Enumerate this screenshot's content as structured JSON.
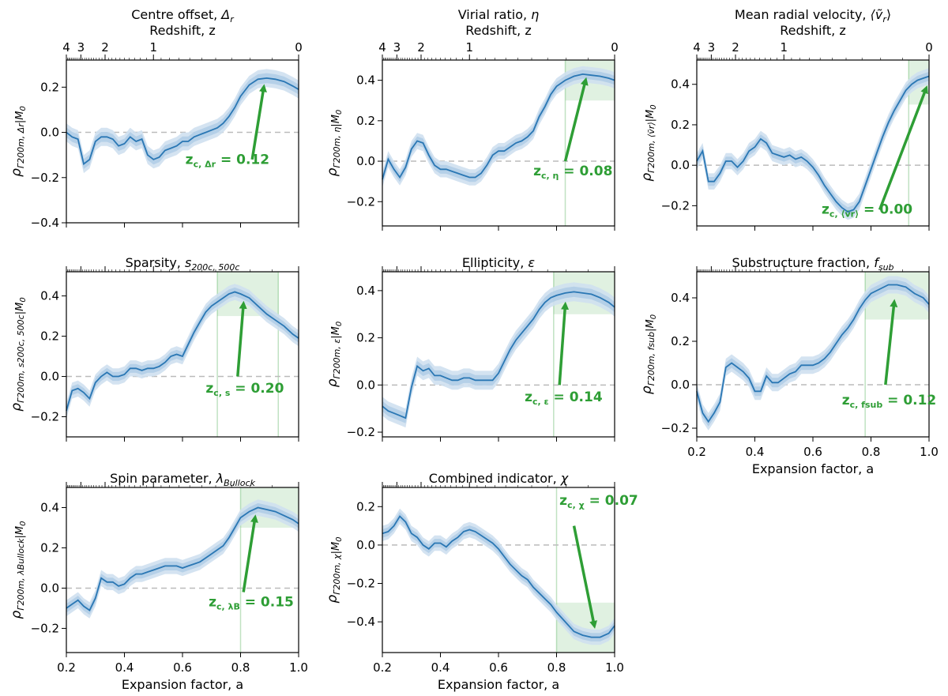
{
  "figure": {
    "colors": {
      "line": "#2a77b4",
      "band_inner": "#a8c8e4",
      "band_outer": "#cfe0f0",
      "green": "#2e9e35",
      "green_region": "#2e9e35",
      "zero_line": "#bbbbbb"
    },
    "shared": {
      "xlabel": "Expansion factor, a",
      "top_axis_label": "Redshift, z",
      "x_ticks": [
        "0.2",
        "0.4",
        "0.6",
        "0.8",
        "1.0"
      ],
      "x_tick_values": [
        0.2,
        0.4,
        0.6,
        0.8,
        1.0
      ],
      "z_ticks": [
        "4",
        "3",
        "2",
        "1",
        "0"
      ],
      "z_tick_values": [
        4,
        3,
        2,
        1,
        0
      ]
    }
  },
  "chart_data": [
    {
      "type": "line",
      "title": "Centre offset, Δ_r",
      "title_main": "Centre offset, ",
      "title_sym": "Δ",
      "title_sub": "r",
      "ylabel_sub": "Δr",
      "ylim": [
        -0.4,
        0.32
      ],
      "yticks": [
        "−0.4",
        "−0.2",
        "0.0",
        "0.2"
      ],
      "ytick_values": [
        -0.4,
        -0.2,
        0.0,
        0.2
      ],
      "annotation": "z_c,Δr = 0.12",
      "annotation_main": "z",
      "annotation_sub": "c, Δr",
      "annotation_value": " = 0.12",
      "has_top_axis": true,
      "x": [
        0.2,
        0.22,
        0.24,
        0.26,
        0.28,
        0.3,
        0.32,
        0.34,
        0.36,
        0.38,
        0.4,
        0.42,
        0.44,
        0.46,
        0.48,
        0.5,
        0.52,
        0.54,
        0.56,
        0.58,
        0.6,
        0.62,
        0.64,
        0.66,
        0.68,
        0.7,
        0.72,
        0.74,
        0.76,
        0.78,
        0.8,
        0.83,
        0.86,
        0.89,
        0.92,
        0.95,
        0.98,
        1.0
      ],
      "y": [
        0.0,
        -0.02,
        -0.03,
        -0.14,
        -0.12,
        -0.04,
        -0.02,
        -0.02,
        -0.03,
        -0.06,
        -0.05,
        -0.02,
        -0.04,
        -0.03,
        -0.1,
        -0.12,
        -0.11,
        -0.08,
        -0.07,
        -0.06,
        -0.04,
        -0.04,
        -0.02,
        -0.01,
        0.0,
        0.01,
        0.02,
        0.04,
        0.07,
        0.11,
        0.16,
        0.21,
        0.235,
        0.24,
        0.235,
        0.225,
        0.205,
        0.19
      ],
      "band": 0.04,
      "green_region": null,
      "arrow_from": [
        0.84,
        -0.12
      ],
      "arrow_to": [
        0.88,
        0.2
      ],
      "annot_at": [
        0.61,
        -0.14
      ]
    },
    {
      "type": "line",
      "title": "Virial ratio, η",
      "title_main": "Virial ratio, ",
      "title_sym": "η",
      "title_sub": "",
      "ylabel_sub": "η",
      "ylim": [
        -0.32,
        0.5
      ],
      "yticks": [
        "−0.2",
        "0.0",
        "0.2",
        "0.4"
      ],
      "ytick_values": [
        -0.2,
        0.0,
        0.2,
        0.4
      ],
      "annotation": "z_c,η = 0.08",
      "annotation_main": "z",
      "annotation_sub": "c, η",
      "annotation_value": " = 0.08",
      "has_top_axis": true,
      "x": [
        0.2,
        0.22,
        0.24,
        0.26,
        0.28,
        0.3,
        0.32,
        0.34,
        0.36,
        0.38,
        0.4,
        0.42,
        0.44,
        0.46,
        0.48,
        0.5,
        0.52,
        0.54,
        0.56,
        0.58,
        0.6,
        0.62,
        0.64,
        0.66,
        0.68,
        0.7,
        0.72,
        0.74,
        0.76,
        0.78,
        0.8,
        0.83,
        0.86,
        0.89,
        0.92,
        0.95,
        0.98,
        1.0
      ],
      "y": [
        -0.09,
        0.01,
        -0.04,
        -0.08,
        -0.03,
        0.06,
        0.1,
        0.09,
        0.03,
        -0.02,
        -0.04,
        -0.04,
        -0.05,
        -0.06,
        -0.07,
        -0.08,
        -0.08,
        -0.06,
        -0.02,
        0.03,
        0.05,
        0.05,
        0.07,
        0.09,
        0.1,
        0.12,
        0.15,
        0.22,
        0.27,
        0.33,
        0.37,
        0.4,
        0.42,
        0.43,
        0.425,
        0.42,
        0.41,
        0.4
      ],
      "band": 0.04,
      "green_region": [
        0.83,
        1.0,
        0.3,
        0.5
      ],
      "arrow_from": [
        0.83,
        0.0
      ],
      "arrow_to": [
        0.9,
        0.4
      ],
      "annot_at": [
        0.72,
        -0.07
      ]
    },
    {
      "type": "line",
      "title": "Mean radial velocity, ⟨ṽ_r⟩",
      "title_main": "Mean radial velocity, ",
      "title_sym": "⟨ṽ",
      "title_sub": "r",
      "title_close": "⟩",
      "ylabel_sub": "⟨ṽr⟩",
      "ylim": [
        -0.3,
        0.52
      ],
      "yticks": [
        "−0.2",
        "0.0",
        "0.2",
        "0.4"
      ],
      "ytick_values": [
        -0.2,
        0.0,
        0.2,
        0.4
      ],
      "annotation": "z_c,⟨ṽr⟩ = 0.00",
      "annotation_main": "z",
      "annotation_sub": "c, ⟨ṽr⟩",
      "annotation_value": " = 0.00",
      "has_top_axis": true,
      "x": [
        0.2,
        0.22,
        0.24,
        0.26,
        0.28,
        0.3,
        0.32,
        0.34,
        0.36,
        0.38,
        0.4,
        0.42,
        0.44,
        0.46,
        0.48,
        0.5,
        0.52,
        0.54,
        0.56,
        0.58,
        0.6,
        0.62,
        0.64,
        0.66,
        0.68,
        0.7,
        0.72,
        0.74,
        0.76,
        0.78,
        0.8,
        0.82,
        0.84,
        0.86,
        0.88,
        0.9,
        0.92,
        0.94,
        0.96,
        0.98,
        1.0
      ],
      "y": [
        0.02,
        0.07,
        -0.08,
        -0.08,
        -0.04,
        0.02,
        0.02,
        -0.01,
        0.02,
        0.07,
        0.09,
        0.13,
        0.11,
        0.06,
        0.05,
        0.04,
        0.05,
        0.03,
        0.04,
        0.02,
        -0.01,
        -0.05,
        -0.1,
        -0.14,
        -0.18,
        -0.21,
        -0.23,
        -0.22,
        -0.18,
        -0.1,
        -0.02,
        0.06,
        0.14,
        0.21,
        0.27,
        0.32,
        0.37,
        0.4,
        0.42,
        0.43,
        0.44
      ],
      "band": 0.04,
      "green_region": [
        0.93,
        1.0,
        0.3,
        0.52
      ],
      "arrow_from": [
        0.83,
        -0.22
      ],
      "arrow_to": [
        0.99,
        0.38
      ],
      "annot_at": [
        0.63,
        -0.24
      ]
    },
    {
      "type": "line",
      "title": "Sparsity, s_200c,500c",
      "title_main": "Sparsity, ",
      "title_sym": "s",
      "title_sub": "200c, 500c",
      "ylabel_sub": "s200c, 500c",
      "ylim": [
        -0.3,
        0.52
      ],
      "yticks": [
        "−0.2",
        "0.0",
        "0.2",
        "0.4"
      ],
      "ytick_values": [
        -0.2,
        0.0,
        0.2,
        0.4
      ],
      "annotation": "z_c,s = 0.20",
      "annotation_main": "z",
      "annotation_sub": "c, s",
      "annotation_value": " = 0.20",
      "has_top_axis": false,
      "x": [
        0.2,
        0.22,
        0.24,
        0.26,
        0.28,
        0.3,
        0.32,
        0.34,
        0.36,
        0.38,
        0.4,
        0.42,
        0.44,
        0.46,
        0.48,
        0.5,
        0.52,
        0.54,
        0.56,
        0.58,
        0.6,
        0.62,
        0.64,
        0.66,
        0.68,
        0.7,
        0.72,
        0.74,
        0.76,
        0.78,
        0.8,
        0.83,
        0.86,
        0.89,
        0.92,
        0.95,
        0.98,
        1.0
      ],
      "y": [
        -0.17,
        -0.07,
        -0.06,
        -0.08,
        -0.11,
        -0.03,
        0.0,
        0.02,
        0.0,
        0.0,
        0.01,
        0.04,
        0.04,
        0.03,
        0.04,
        0.04,
        0.05,
        0.07,
        0.1,
        0.11,
        0.1,
        0.16,
        0.22,
        0.27,
        0.32,
        0.35,
        0.37,
        0.39,
        0.41,
        0.42,
        0.41,
        0.39,
        0.35,
        0.31,
        0.28,
        0.25,
        0.21,
        0.19
      ],
      "band": 0.04,
      "green_region": [
        0.72,
        0.93,
        0.3,
        0.52
      ],
      "arrow_from": [
        0.79,
        0.0
      ],
      "arrow_to": [
        0.81,
        0.36
      ],
      "annot_at": [
        0.68,
        -0.08
      ]
    },
    {
      "type": "line",
      "title": "Ellipticity, ε",
      "title_main": "Ellipticity, ",
      "title_sym": "ε",
      "title_sub": "",
      "ylabel_sub": "ε",
      "ylim": [
        -0.22,
        0.48
      ],
      "yticks": [
        "−0.2",
        "0.0",
        "0.2",
        "0.4"
      ],
      "ytick_values": [
        -0.2,
        0.0,
        0.2,
        0.4
      ],
      "annotation": "z_c,ε = 0.14",
      "annotation_main": "z",
      "annotation_sub": "c, ε",
      "annotation_value": " = 0.14",
      "has_top_axis": false,
      "x": [
        0.2,
        0.22,
        0.24,
        0.26,
        0.28,
        0.3,
        0.32,
        0.34,
        0.36,
        0.38,
        0.4,
        0.42,
        0.44,
        0.46,
        0.48,
        0.5,
        0.52,
        0.54,
        0.56,
        0.58,
        0.6,
        0.62,
        0.64,
        0.66,
        0.68,
        0.7,
        0.72,
        0.74,
        0.76,
        0.78,
        0.8,
        0.83,
        0.86,
        0.89,
        0.92,
        0.95,
        0.98,
        1.0
      ],
      "y": [
        -0.09,
        -0.11,
        -0.12,
        -0.13,
        -0.14,
        -0.01,
        0.08,
        0.06,
        0.07,
        0.04,
        0.04,
        0.03,
        0.02,
        0.02,
        0.03,
        0.03,
        0.02,
        0.02,
        0.02,
        0.02,
        0.05,
        0.1,
        0.15,
        0.19,
        0.22,
        0.25,
        0.28,
        0.32,
        0.35,
        0.37,
        0.38,
        0.39,
        0.395,
        0.39,
        0.385,
        0.37,
        0.35,
        0.33
      ],
      "band": 0.04,
      "green_region": [
        0.79,
        1.0,
        0.3,
        0.48
      ],
      "arrow_from": [
        0.81,
        0.0
      ],
      "arrow_to": [
        0.83,
        0.34
      ],
      "annot_at": [
        0.69,
        -0.07
      ]
    },
    {
      "type": "line",
      "title": "Substructure fraction, f_sub",
      "title_main": "Substructure fraction, ",
      "title_sym": "f",
      "title_sub": "sub",
      "ylabel_sub": "fsub",
      "ylim": [
        -0.24,
        0.52
      ],
      "yticks": [
        "−0.2",
        "0.0",
        "0.2",
        "0.4"
      ],
      "ytick_values": [
        -0.2,
        0.0,
        0.2,
        0.4
      ],
      "annotation": "z_c,fsub = 0.12",
      "annotation_main": "z",
      "annotation_sub": "c, fsub",
      "annotation_value": " = 0.12",
      "has_top_axis": false,
      "x": [
        0.2,
        0.22,
        0.24,
        0.26,
        0.28,
        0.3,
        0.32,
        0.34,
        0.36,
        0.38,
        0.4,
        0.42,
        0.44,
        0.46,
        0.48,
        0.5,
        0.52,
        0.54,
        0.56,
        0.58,
        0.6,
        0.62,
        0.64,
        0.66,
        0.68,
        0.7,
        0.72,
        0.74,
        0.76,
        0.78,
        0.8,
        0.83,
        0.86,
        0.89,
        0.92,
        0.95,
        0.98,
        1.0
      ],
      "y": [
        -0.03,
        -0.13,
        -0.17,
        -0.13,
        -0.08,
        0.08,
        0.1,
        0.08,
        0.06,
        0.03,
        -0.03,
        -0.03,
        0.04,
        0.01,
        0.01,
        0.03,
        0.05,
        0.06,
        0.09,
        0.09,
        0.09,
        0.1,
        0.12,
        0.15,
        0.19,
        0.23,
        0.26,
        0.3,
        0.35,
        0.39,
        0.42,
        0.44,
        0.46,
        0.46,
        0.45,
        0.42,
        0.4,
        0.37
      ],
      "band": 0.04,
      "green_region": [
        0.78,
        1.0,
        0.3,
        0.52
      ],
      "arrow_from": [
        0.85,
        0.0
      ],
      "arrow_to": [
        0.88,
        0.38
      ],
      "annot_at": [
        0.7,
        -0.09
      ]
    },
    {
      "type": "line",
      "title": "Spin parameter, λ_Bullock",
      "title_main": "Spin parameter, ",
      "title_sym": "λ",
      "title_sub": "Bullock",
      "ylabel_sub": "λBullock",
      "ylim": [
        -0.32,
        0.5
      ],
      "yticks": [
        "−0.2",
        "0.0",
        "0.2",
        "0.4"
      ],
      "ytick_values": [
        -0.2,
        0.0,
        0.2,
        0.4
      ],
      "annotation": "z_c,λB = 0.15",
      "annotation_main": "z",
      "annotation_sub": "c, λB",
      "annotation_value": " = 0.15",
      "has_top_axis": false,
      "x": [
        0.2,
        0.22,
        0.24,
        0.26,
        0.28,
        0.3,
        0.32,
        0.34,
        0.36,
        0.38,
        0.4,
        0.42,
        0.44,
        0.46,
        0.48,
        0.5,
        0.52,
        0.54,
        0.56,
        0.58,
        0.6,
        0.62,
        0.64,
        0.66,
        0.68,
        0.7,
        0.72,
        0.74,
        0.76,
        0.78,
        0.8,
        0.83,
        0.86,
        0.89,
        0.92,
        0.95,
        0.98,
        1.0
      ],
      "y": [
        -0.1,
        -0.08,
        -0.06,
        -0.09,
        -0.11,
        -0.05,
        0.05,
        0.03,
        0.03,
        0.01,
        0.02,
        0.05,
        0.07,
        0.07,
        0.08,
        0.09,
        0.1,
        0.11,
        0.11,
        0.11,
        0.1,
        0.11,
        0.12,
        0.13,
        0.15,
        0.17,
        0.19,
        0.21,
        0.25,
        0.3,
        0.35,
        0.38,
        0.4,
        0.39,
        0.38,
        0.36,
        0.34,
        0.32
      ],
      "band": 0.04,
      "green_region": [
        0.8,
        1.0,
        0.3,
        0.5
      ],
      "arrow_from": [
        0.81,
        -0.02
      ],
      "arrow_to": [
        0.85,
        0.35
      ],
      "annot_at": [
        0.69,
        -0.09
      ]
    },
    {
      "type": "line",
      "title": "Combined indicator, χ",
      "title_main": "Combined indicator, ",
      "title_sym": "χ",
      "title_sub": "",
      "ylabel_sub": "χ",
      "ylim": [
        -0.56,
        0.3
      ],
      "yticks": [
        "−0.4",
        "−0.2",
        "0.0",
        "0.2"
      ],
      "ytick_values": [
        -0.4,
        -0.2,
        0.0,
        0.2
      ],
      "annotation": "z_c,χ = 0.07",
      "annotation_main": "z",
      "annotation_sub": "c, χ",
      "annotation_value": " = 0.07",
      "has_top_axis": false,
      "x": [
        0.2,
        0.22,
        0.24,
        0.26,
        0.28,
        0.3,
        0.32,
        0.34,
        0.36,
        0.38,
        0.4,
        0.42,
        0.44,
        0.46,
        0.48,
        0.5,
        0.52,
        0.54,
        0.56,
        0.58,
        0.6,
        0.62,
        0.64,
        0.66,
        0.68,
        0.7,
        0.72,
        0.74,
        0.76,
        0.78,
        0.8,
        0.83,
        0.86,
        0.89,
        0.92,
        0.95,
        0.98,
        1.0
      ],
      "y": [
        0.06,
        0.07,
        0.1,
        0.15,
        0.12,
        0.06,
        0.04,
        0.0,
        -0.02,
        0.01,
        0.01,
        -0.01,
        0.02,
        0.04,
        0.07,
        0.08,
        0.07,
        0.05,
        0.03,
        0.01,
        -0.02,
        -0.06,
        -0.1,
        -0.13,
        -0.16,
        -0.18,
        -0.22,
        -0.25,
        -0.28,
        -0.31,
        -0.35,
        -0.4,
        -0.45,
        -0.47,
        -0.48,
        -0.48,
        -0.46,
        -0.42
      ],
      "band": 0.04,
      "green_region": [
        0.8,
        1.0,
        -0.56,
        -0.3
      ],
      "arrow_from": [
        0.86,
        0.1
      ],
      "arrow_to": [
        0.93,
        -0.42
      ],
      "annot_at": [
        0.81,
        0.21
      ]
    }
  ]
}
